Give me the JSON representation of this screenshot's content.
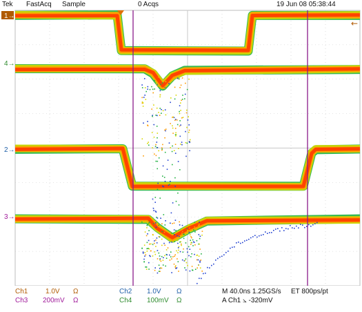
{
  "header": {
    "brand": "Tek",
    "mode": "FastAcq",
    "acq_mode": "Sample",
    "acq_count": "0 Acqs",
    "datetime": "19 Jun 08 05:38:44"
  },
  "channels": {
    "ch1": {
      "marker": "1",
      "color": "#ffffff",
      "marker_bg": "#b05a00"
    },
    "ch4": {
      "marker": "4",
      "color": "#2e8b2e"
    },
    "ch2": {
      "marker": "2",
      "color": "#1f5fa8"
    },
    "ch3": {
      "marker": "3",
      "color": "#a01a9a"
    }
  },
  "readouts": {
    "ch1_name": "Ch1",
    "ch1_scale": "1.0V",
    "ch1_ohm": "Ω",
    "ch3_name": "Ch3",
    "ch3_scale": "200mV",
    "ch3_ohm": "Ω",
    "ch2_name": "Ch2",
    "ch2_scale": "1.0V",
    "ch2_ohm": "Ω",
    "ch4_name": "Ch4",
    "ch4_scale": "100mV",
    "ch4_ohm": "Ω",
    "timebase": "M 40.0ns 1.25GS/s",
    "record": "ET 800ps/pt",
    "trigger": "A  Ch1  ⦣  -320mV"
  },
  "colors": {
    "grid": "#c8c8c8",
    "cursor": "#8a1a8a",
    "trace_hot": "#ff3a00",
    "trace_warm": "#ff9a00",
    "trace_mid": "#d8d800",
    "trace_cool": "#20b040",
    "trace_cold": "#2040d0",
    "ch1_text": "#b05a00",
    "ch2_text": "#1f5fa8",
    "ch3_text": "#a01a9a",
    "ch4_text": "#2e8b2e"
  }
}
